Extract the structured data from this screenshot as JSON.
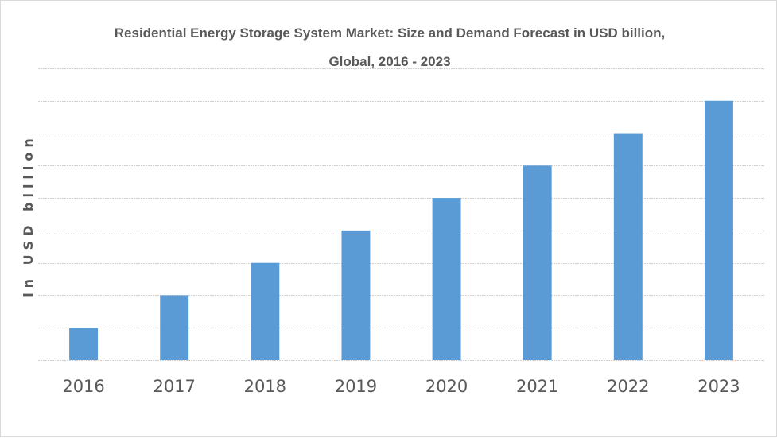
{
  "chart_data": {
    "type": "bar",
    "title": "Residential Energy Storage System Market: Size and Demand Forecast in USD billion,",
    "subtitle": "Global, 2016 - 2023",
    "xlabel": "",
    "ylabel": "in USD billion",
    "categories": [
      "2016",
      "2017",
      "2018",
      "2019",
      "2020",
      "2021",
      "2022",
      "2023"
    ],
    "values": [
      1,
      2,
      3,
      4,
      5,
      6,
      7,
      8
    ],
    "value_units": "relative (gridline units; no y-axis tick labels shown)",
    "ylim": [
      0,
      9
    ],
    "gridline_step": 1,
    "grid": true,
    "legend": "none",
    "colors": {
      "bar": "#5b9bd5",
      "grid": "#d0d0d0",
      "text": "#595959"
    }
  }
}
